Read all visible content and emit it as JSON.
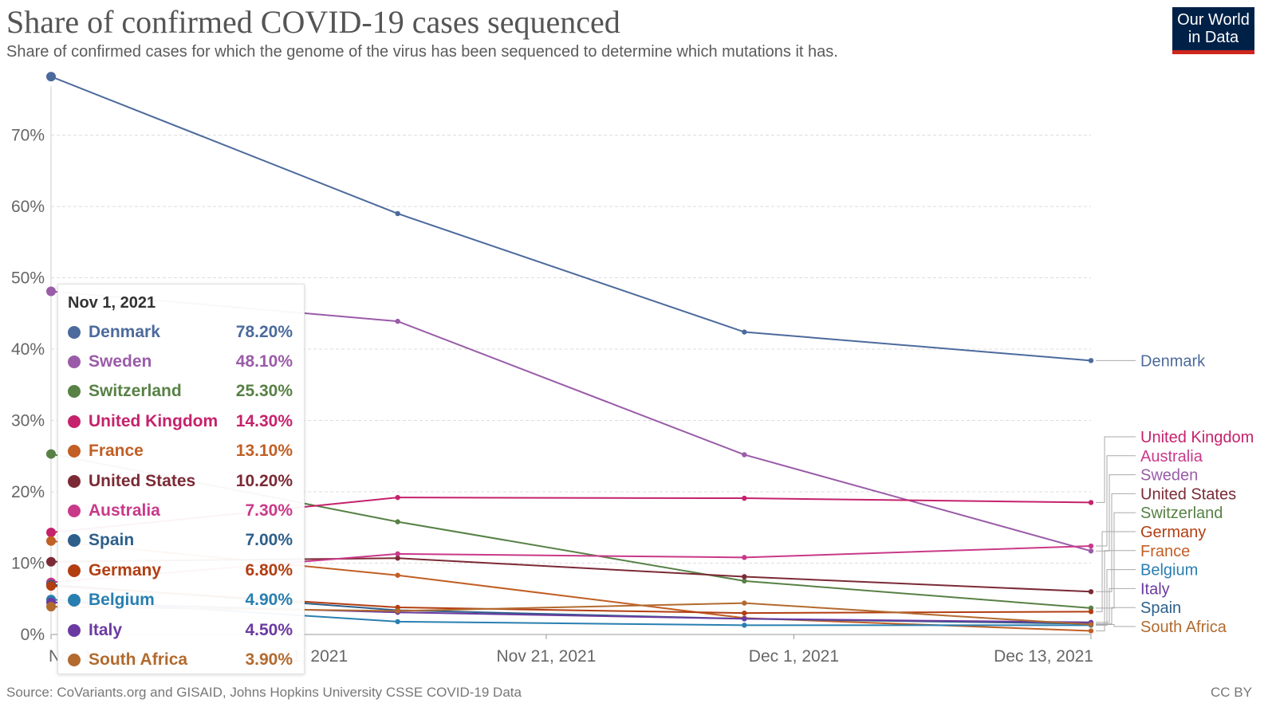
{
  "header": {
    "title": "Share of confirmed COVID-19 cases sequenced",
    "subtitle": "Share of confirmed cases for which the genome of the virus has been sequenced to determine which mutations it has.",
    "logo_line1": "Our World",
    "logo_line2": "in Data"
  },
  "footer": {
    "source": "Source: CoVariants.org and GISAID, Johns Hopkins University CSSE COVID-19 Data",
    "license": "CC BY"
  },
  "tooltip": {
    "date": "Nov 1, 2021",
    "rows": [
      {
        "name": "Denmark",
        "value": "78.20%",
        "color": "#4c6a9c"
      },
      {
        "name": "Sweden",
        "value": "48.10%",
        "color": "#9a5ca8"
      },
      {
        "name": "Switzerland",
        "value": "25.30%",
        "color": "#578145"
      },
      {
        "name": "United Kingdom",
        "value": "14.30%",
        "color": "#c5226c"
      },
      {
        "name": "France",
        "value": "13.10%",
        "color": "#c15f25"
      },
      {
        "name": "United States",
        "value": "10.20%",
        "color": "#7b2a35"
      },
      {
        "name": "Australia",
        "value": "7.30%",
        "color": "#c93989"
      },
      {
        "name": "Spain",
        "value": "7.00%",
        "color": "#2d5f8a"
      },
      {
        "name": "Germany",
        "value": "6.80%",
        "color": "#b23e12"
      },
      {
        "name": "Belgium",
        "value": "4.90%",
        "color": "#297fb0"
      },
      {
        "name": "Italy",
        "value": "4.50%",
        "color": "#6b3aa0"
      },
      {
        "name": "South Africa",
        "value": "3.90%",
        "color": "#b26a2e"
      }
    ]
  },
  "chart_data": {
    "type": "line",
    "title": "Share of confirmed COVID-19 cases sequenced",
    "xlabel": "",
    "ylabel": "",
    "x": [
      "2021-11-01",
      "2021-11-15",
      "2021-11-29",
      "2021-12-13"
    ],
    "x_tick_labels": [
      "Nov 1, 2021",
      "Nov 11, 2021",
      "Nov 21, 2021",
      "Dec 1, 2021",
      "Dec 13, 2021"
    ],
    "x_tick_dates": [
      "2021-11-01",
      "2021-11-11",
      "2021-11-21",
      "2021-12-01",
      "2021-12-13"
    ],
    "x_range": [
      "2021-11-01",
      "2021-12-13"
    ],
    "y_ticks": [
      0,
      10,
      20,
      30,
      40,
      50,
      60,
      70
    ],
    "y_tick_labels": [
      "0%",
      "10%",
      "20%",
      "30%",
      "40%",
      "50%",
      "60%",
      "70%"
    ],
    "ylim": [
      0,
      80
    ],
    "grid": true,
    "legend": "right",
    "series": [
      {
        "name": "Denmark",
        "color": "#4c6a9c",
        "values": [
          78.2,
          59.0,
          42.4,
          38.4
        ]
      },
      {
        "name": "Sweden",
        "color": "#9a5ca8",
        "values": [
          48.1,
          43.9,
          25.2,
          11.7
        ]
      },
      {
        "name": "Switzerland",
        "color": "#578145",
        "values": [
          25.3,
          15.8,
          7.5,
          3.7
        ]
      },
      {
        "name": "United Kingdom",
        "color": "#c5226c",
        "values": [
          14.3,
          19.2,
          19.1,
          18.5
        ]
      },
      {
        "name": "France",
        "color": "#c15f25",
        "values": [
          13.1,
          8.3,
          2.3,
          0.5
        ]
      },
      {
        "name": "United States",
        "color": "#7b2a35",
        "values": [
          10.2,
          10.7,
          8.1,
          6.0
        ]
      },
      {
        "name": "Australia",
        "color": "#c93989",
        "values": [
          7.3,
          11.3,
          10.8,
          12.4
        ]
      },
      {
        "name": "Spain",
        "color": "#2d5f8a",
        "values": [
          7.0,
          3.4,
          2.2,
          1.5
        ]
      },
      {
        "name": "Germany",
        "color": "#b23e12",
        "values": [
          6.8,
          3.8,
          3.0,
          3.2
        ]
      },
      {
        "name": "Belgium",
        "color": "#297fb0",
        "values": [
          4.9,
          1.8,
          1.3,
          1.3
        ]
      },
      {
        "name": "Italy",
        "color": "#6b3aa0",
        "values": [
          4.5,
          3.1,
          2.2,
          1.7
        ]
      },
      {
        "name": "South Africa",
        "color": "#b26a2e",
        "values": [
          3.9,
          3.3,
          4.4,
          1.4
        ]
      }
    ],
    "legend_order": [
      "Denmark",
      "United Kingdom",
      "Australia",
      "Sweden",
      "United States",
      "Switzerland",
      "Germany",
      "France",
      "Belgium",
      "Italy",
      "Spain",
      "South Africa"
    ]
  }
}
